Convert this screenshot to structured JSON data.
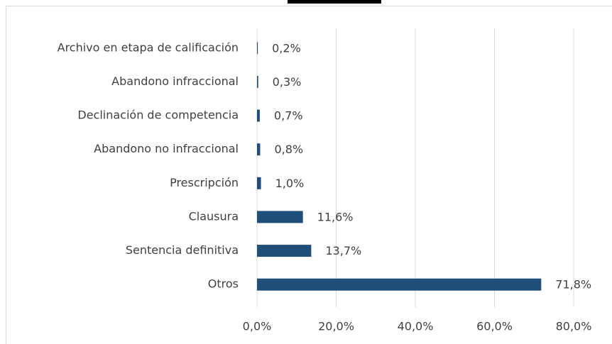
{
  "chart_data": {
    "type": "bar",
    "orientation": "horizontal",
    "categories": [
      "Archivo en etapa de calificación",
      "Abandono infraccional",
      "Declinación de competencia",
      "Abandono no infraccional",
      "Prescripción",
      "Clausura",
      "Sentencia definitiva",
      "Otros"
    ],
    "values": [
      0.2,
      0.3,
      0.7,
      0.8,
      1.0,
      11.6,
      13.7,
      71.8
    ],
    "value_labels": [
      "0,2%",
      "0,3%",
      "0,7%",
      "0,8%",
      "1,0%",
      "11,6%",
      "13,7%",
      "71,8%"
    ],
    "color": "#1f4e79",
    "xlim": [
      0,
      80
    ],
    "xticks": [
      {
        "value": 0,
        "label": "0,0%"
      },
      {
        "value": 20,
        "label": "20,0%"
      },
      {
        "value": 40,
        "label": "40,0%"
      },
      {
        "value": 60,
        "label": "60,0%"
      },
      {
        "value": 80,
        "label": "80,0%"
      }
    ],
    "grid": true
  }
}
